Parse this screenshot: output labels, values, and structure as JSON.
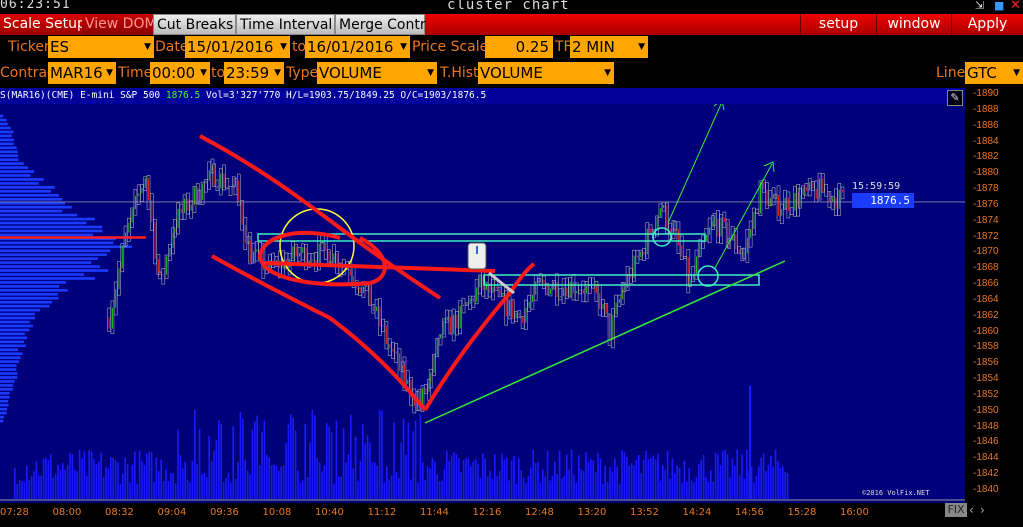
{
  "window": {
    "clock": "06:23:51",
    "title": "cluster chart",
    "icons": [
      "minimize-icon",
      "restore-icon",
      "close-icon"
    ]
  },
  "tabs": {
    "scale_setup": "Scale Setup",
    "view_dom": "View DOM",
    "cut_breaks": "Cut Breaks",
    "time_interval": "Time Interval",
    "merge_contr": "Merge Contr",
    "setup": "setup",
    "window": "window",
    "apply": "Apply"
  },
  "form": {
    "ticker_label": "Ticker",
    "ticker": "ES",
    "date_label": "Date",
    "date_from": "15/01/2016",
    "to1": "to",
    "date_to": "16/01/2016",
    "price_scale_label": "Price Scale",
    "price_scale": "0.25",
    "tf_label": "TF",
    "tf": "2 MIN",
    "contract_label": "Contract",
    "contract": "MAR16",
    "time_label": "Time",
    "time_from": "00:00",
    "to2": "to",
    "time_to": "23:59",
    "type_label": "Type",
    "type": "VOLUME",
    "thist_label": "T.Hist",
    "thist": "VOLUME",
    "line_label": "Line",
    "line": "GTC"
  },
  "info": {
    "symbol": "S(MAR16)(CME) E-mini S&P 500",
    "last": "1876.5",
    "rest": "Vol=3'327'770 H/L=1903.75/1849.25 O/C=1903/1876.5"
  },
  "last_marker": {
    "time": "15:59:59",
    "price": "1876.5"
  },
  "copyright": "©2016 VolFix.NET",
  "fix_label": "FIX",
  "colors": {
    "chart_bg": "#00007a",
    "axis_text": "#e8761e",
    "accent_red": "#e00000",
    "field": "#ffa500",
    "volume": "#1a1aff"
  },
  "chart_data": {
    "type": "candlestick",
    "y_ticks": [
      "1890",
      "1888",
      "1886",
      "1884",
      "1882",
      "1880",
      "1878",
      "1876",
      "1874",
      "1872",
      "1870",
      "1868",
      "1866",
      "1864",
      "1862",
      "1860",
      "1858",
      "1856",
      "1854",
      "1852",
      "1850",
      "1848",
      "1846",
      "1844",
      "1842",
      "1840"
    ],
    "x_ticks": [
      "07:28",
      "08:00",
      "08:32",
      "09:04",
      "09:36",
      "10:08",
      "10:40",
      "11:12",
      "11:44",
      "12:16",
      "12:48",
      "13:20",
      "13:52",
      "14:24",
      "14:56",
      "15:28",
      "16:00"
    ],
    "ylim": [
      1840,
      1890
    ],
    "price_path": [
      [
        "08:26",
        1862
      ],
      [
        "08:36",
        1872
      ],
      [
        "08:48",
        1880
      ],
      [
        "08:57",
        1866
      ],
      [
        "09:06",
        1874
      ],
      [
        "09:21",
        1878
      ],
      [
        "09:30",
        1880
      ],
      [
        "09:43",
        1878
      ],
      [
        "09:52",
        1870
      ],
      [
        "10:04",
        1868
      ],
      [
        "10:22",
        1870
      ],
      [
        "10:41",
        1870
      ],
      [
        "10:53",
        1868
      ],
      [
        "11:05",
        1864
      ],
      [
        "11:17",
        1858
      ],
      [
        "11:26",
        1854
      ],
      [
        "11:35",
        1851
      ],
      [
        "11:42",
        1854
      ],
      [
        "11:48",
        1860
      ],
      [
        "12:00",
        1862
      ],
      [
        "12:12",
        1866
      ],
      [
        "12:24",
        1864
      ],
      [
        "12:36",
        1862
      ],
      [
        "12:49",
        1866
      ],
      [
        "13:01",
        1866
      ],
      [
        "13:13",
        1866
      ],
      [
        "13:25",
        1864
      ],
      [
        "13:31",
        1860
      ],
      [
        "13:40",
        1866
      ],
      [
        "13:50",
        1870
      ],
      [
        "14:02",
        1876
      ],
      [
        "14:11",
        1872
      ],
      [
        "14:20",
        1866
      ],
      [
        "14:26",
        1870
      ],
      [
        "14:35",
        1874
      ],
      [
        "14:44",
        1872
      ],
      [
        "14:53",
        1870
      ],
      [
        "15:03",
        1878
      ],
      [
        "15:12",
        1876
      ],
      [
        "15:27",
        1877
      ],
      [
        "15:39",
        1878
      ],
      [
        "15:55",
        1876.5
      ]
    ],
    "volume_spike": {
      "time": "14:56",
      "level": "high"
    },
    "last_price_line": 1876.5,
    "poc_price": 1872,
    "volume_profile": [
      [
        1886,
        0.1
      ],
      [
        1884,
        0.12
      ],
      [
        1882,
        0.18
      ],
      [
        1880,
        0.3
      ],
      [
        1878,
        0.45
      ],
      [
        1876,
        0.6
      ],
      [
        1874,
        0.75
      ],
      [
        1872,
        1.0
      ],
      [
        1870,
        0.95
      ],
      [
        1868,
        0.85
      ],
      [
        1866,
        0.55
      ],
      [
        1864,
        0.4
      ],
      [
        1862,
        0.3
      ],
      [
        1860,
        0.22
      ],
      [
        1858,
        0.18
      ],
      [
        1856,
        0.15
      ],
      [
        1854,
        0.12
      ],
      [
        1852,
        0.08
      ],
      [
        1850,
        0.05
      ]
    ]
  }
}
